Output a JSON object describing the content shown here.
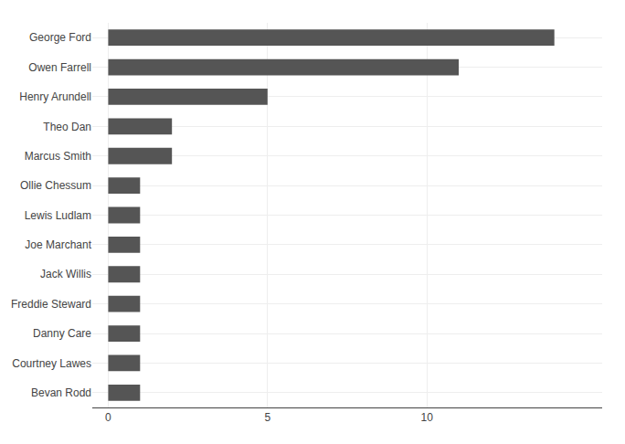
{
  "chart_data": {
    "type": "bar",
    "orientation": "horizontal",
    "categories": [
      "George Ford",
      "Owen Farrell",
      "Henry Arundell",
      "Theo Dan",
      "Marcus Smith",
      "Ollie Chessum",
      "Lewis Ludlam",
      "Joe Marchant",
      "Jack Willis",
      "Freddie Steward",
      "Danny Care",
      "Courtney Lawes",
      "Bevan Rodd"
    ],
    "values": [
      14,
      11,
      5,
      2,
      2,
      1,
      1,
      1,
      1,
      1,
      1,
      1,
      1
    ],
    "color": "#555555",
    "xlim": [
      -0.5,
      15.5
    ],
    "xticks": [
      0,
      5,
      10
    ],
    "grid": true
  }
}
